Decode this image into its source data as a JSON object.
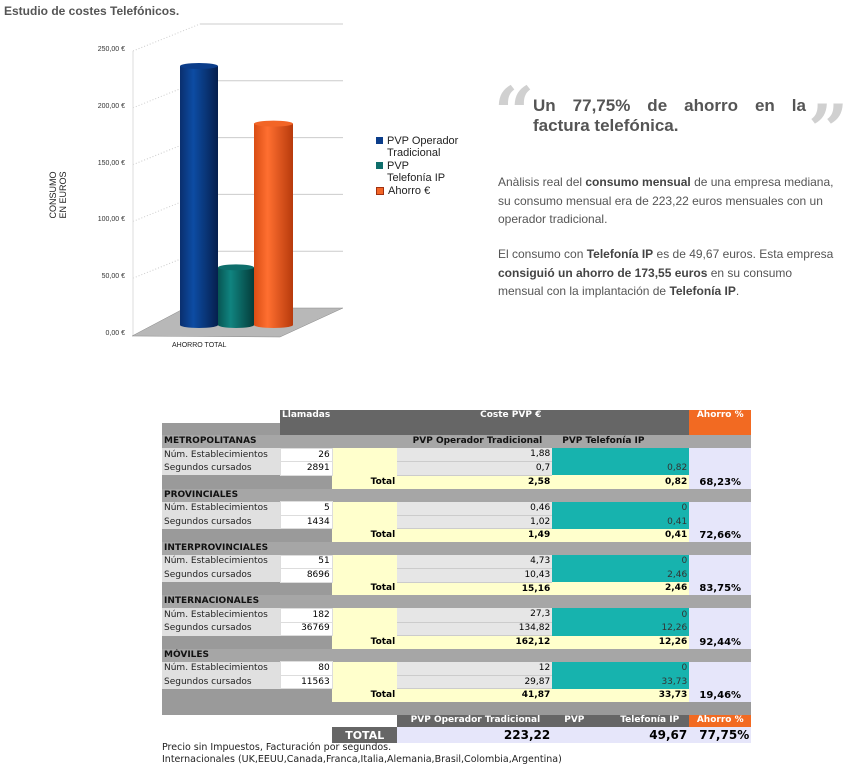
{
  "title": "Estudio de costes Telefónicos.",
  "chart_data": {
    "type": "bar",
    "categories": [
      "AHORRO TOTAL"
    ],
    "series": [
      {
        "name": "PVP Operador Tradicional",
        "values": [
          223.22
        ],
        "color": "#0b3d8a"
      },
      {
        "name": "PVP Telefonía IP",
        "values": [
          49.67
        ],
        "color": "#0e6e6b"
      },
      {
        "name": "Ahorro €",
        "values": [
          173.55
        ],
        "color": "#f26526"
      }
    ],
    "ylabel": "CONSUMO EN EUROS",
    "xlabel": "",
    "ylim": [
      0,
      250
    ],
    "yticks": [
      "0,00 €",
      "50,00 €",
      "100,00 €",
      "150,00 €",
      "200,00 €",
      "250,00 €"
    ],
    "legend": "right"
  },
  "legend": {
    "s1a": "PVP Operador",
    "s1b": "Tradicional",
    "s2a": "PVP",
    "s2b": "Telefonía IP",
    "s3": "Ahorro €"
  },
  "quote": {
    "line1": "Un 77,75% de ahorro en la",
    "line2": "factura telefónica."
  },
  "para1": {
    "a": "Anàlisis real del ",
    "b": "consumo mensual",
    "c": " de una empresa mediana, su consumo mensual era de 223,22 euros mensuales con un operador tradicional."
  },
  "para2": {
    "a": "El consumo con ",
    "b": "Telefonía IP",
    "c": " es de 49,67 euros. Esta empresa ",
    "d": "consiguió un ahorro de 173,55 euros",
    "e": " en su consumo mensual con la implantación de ",
    "f": "Telefonía IP",
    "g": "."
  },
  "table": {
    "h_llamadas": "Llamadas",
    "h_coste": "Coste PVP €",
    "h_ahorro": "Ahorro %",
    "h_trad": "PVP Operador Tradicional",
    "h_ip": "PVP Telefonía IP",
    "total_label": "Total",
    "sections": [
      {
        "name": "METROPOLITANAS",
        "rows": [
          {
            "label": "Núm. Establecimientos",
            "calls": "26",
            "trad": "1,88",
            "ip": ""
          },
          {
            "label": "Segundos cursados",
            "calls": "2891",
            "trad": "0,7",
            "ip": "0,82"
          }
        ],
        "total_trad": "2,58",
        "total_ip": "0,82",
        "ahorro": "68,23%"
      },
      {
        "name": "PROVINCIALES",
        "rows": [
          {
            "label": "Núm. Establecimientos",
            "calls": "5",
            "trad": "0,46",
            "ip": "0"
          },
          {
            "label": "Segundos cursados",
            "calls": "1434",
            "trad": "1,02",
            "ip": "0,41"
          }
        ],
        "total_trad": "1,49",
        "total_ip": "0,41",
        "ahorro": "72,66%"
      },
      {
        "name": "INTERPROVINCIALES",
        "rows": [
          {
            "label": "Núm. Establecimientos",
            "calls": "51",
            "trad": "4,73",
            "ip": "0"
          },
          {
            "label": "Segundos cursados",
            "calls": "8696",
            "trad": "10,43",
            "ip": "2,46"
          }
        ],
        "total_trad": "15,16",
        "total_ip": "2,46",
        "ahorro": "83,75%"
      },
      {
        "name": "INTERNACIONALES",
        "rows": [
          {
            "label": "Núm. Establecimientos",
            "calls": "182",
            "trad": "27,3",
            "ip": "0"
          },
          {
            "label": "Segundos cursados",
            "calls": "36769",
            "trad": "134,82",
            "ip": "12,26"
          }
        ],
        "total_trad": "162,12",
        "total_ip": "12,26",
        "ahorro": "92,44%"
      },
      {
        "name": "MÓVILES",
        "rows": [
          {
            "label": "Núm. Establecimientos",
            "calls": "80",
            "trad": "12",
            "ip": "0"
          },
          {
            "label": "Segundos cursados",
            "calls": "11563",
            "trad": "29,87",
            "ip": "33,73"
          }
        ],
        "total_trad": "41,87",
        "total_ip": "33,73",
        "ahorro": "19,46%"
      }
    ],
    "sum": {
      "h_trad": "PVP Operador Tradicional",
      "h_pvp": "PVP",
      "h_ip": "Telefonía IP",
      "h_ahorro": "Ahorro %",
      "label": "TOTAL",
      "trad": "223,22",
      "ip": "49,67",
      "ahorro": "77,75%"
    }
  },
  "footer": {
    "line1": "Precio sin Impuestos, Facturación por segundos.",
    "line2": "Internacionales (UK,EEUU,Canada,Franca,Italia,Alemania,Brasil,Colombia,Argentina)"
  }
}
